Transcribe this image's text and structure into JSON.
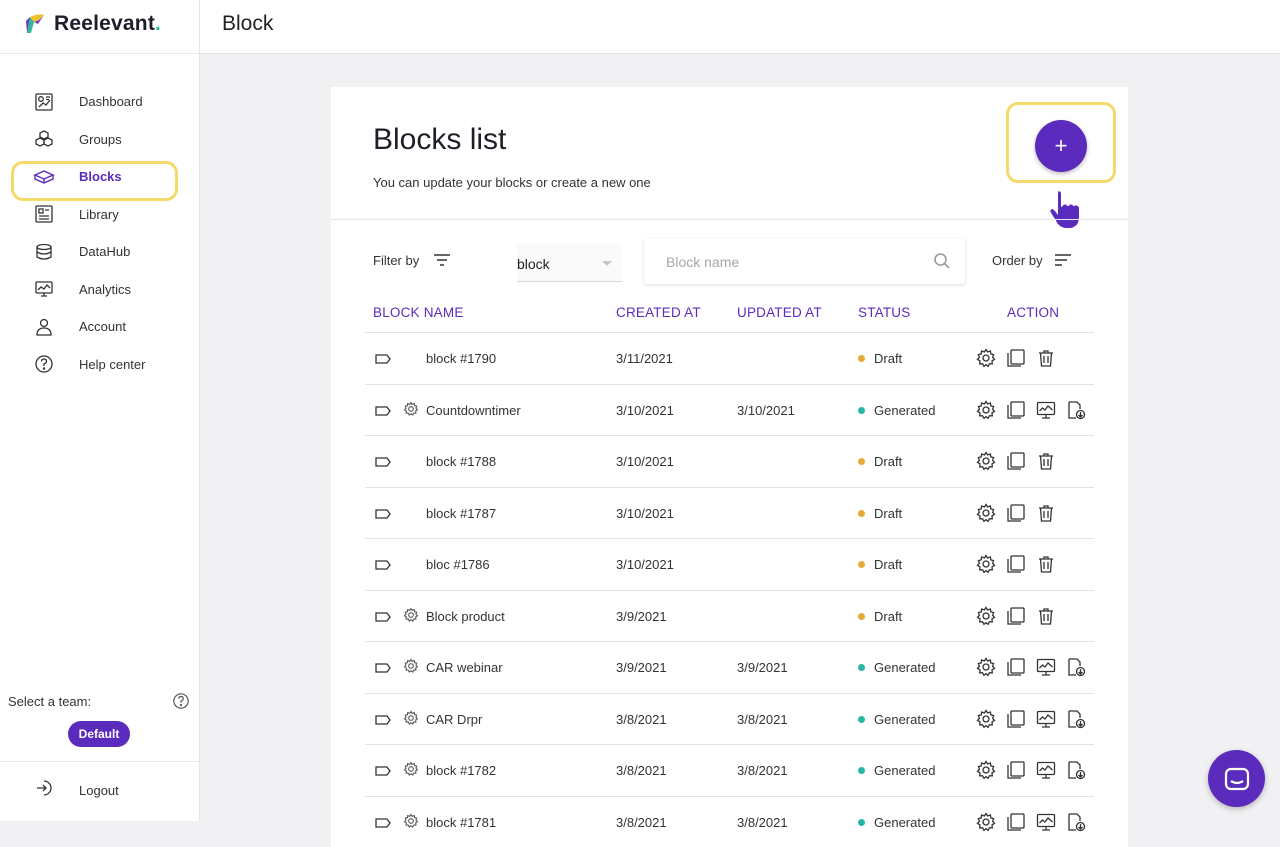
{
  "app": {
    "name": "Reelevant",
    "dot": "."
  },
  "colors": {
    "accent": "#5b2bbd",
    "highlight": "#f6d96b",
    "draft": "#e8a93b",
    "generated": "#27b6a4"
  },
  "sidebar": {
    "items": [
      {
        "label": "Dashboard",
        "icon": "dashboard-icon"
      },
      {
        "label": "Groups",
        "icon": "groups-icon"
      },
      {
        "label": "Blocks",
        "icon": "blocks-icon",
        "active": true
      },
      {
        "label": "Library",
        "icon": "library-icon"
      },
      {
        "label": "DataHub",
        "icon": "database-icon"
      },
      {
        "label": "Analytics",
        "icon": "analytics-icon"
      },
      {
        "label": "Account",
        "icon": "user-icon"
      },
      {
        "label": "Help center",
        "icon": "help-icon"
      }
    ],
    "team_label": "Select a team:",
    "team_value": "Default",
    "logout_label": "Logout"
  },
  "header": {
    "title": "Block"
  },
  "main": {
    "title": "Blocks list",
    "subtitle": "You can update your blocks or create a new one",
    "add_label": "+",
    "filter_label": "Filter by",
    "filter_value": "block",
    "search_placeholder": "Block name",
    "order_label": "Order by",
    "columns": [
      "BLOCK NAME",
      "CREATED AT",
      "UPDATED AT",
      "STATUS",
      "ACTION"
    ]
  },
  "rows": [
    {
      "name": "block #1790",
      "created": "3/11/2021",
      "updated": "",
      "status": "Draft",
      "gear": false
    },
    {
      "name": "Countdowntimer",
      "created": "3/10/2021",
      "updated": "3/10/2021",
      "status": "Generated",
      "gear": true
    },
    {
      "name": "block #1788",
      "created": "3/10/2021",
      "updated": "",
      "status": "Draft",
      "gear": false
    },
    {
      "name": "block #1787",
      "created": "3/10/2021",
      "updated": "",
      "status": "Draft",
      "gear": false
    },
    {
      "name": "bloc #1786",
      "created": "3/10/2021",
      "updated": "",
      "status": "Draft",
      "gear": false
    },
    {
      "name": "Block product",
      "created": "3/9/2021",
      "updated": "",
      "status": "Draft",
      "gear": true
    },
    {
      "name": "CAR webinar",
      "created": "3/9/2021",
      "updated": "3/9/2021",
      "status": "Generated",
      "gear": true
    },
    {
      "name": "CAR Drpr",
      "created": "3/8/2021",
      "updated": "3/8/2021",
      "status": "Generated",
      "gear": true
    },
    {
      "name": "block #1782",
      "created": "3/8/2021",
      "updated": "3/8/2021",
      "status": "Generated",
      "gear": true
    },
    {
      "name": "block #1781",
      "created": "3/8/2021",
      "updated": "3/8/2021",
      "status": "Generated",
      "gear": true
    }
  ]
}
